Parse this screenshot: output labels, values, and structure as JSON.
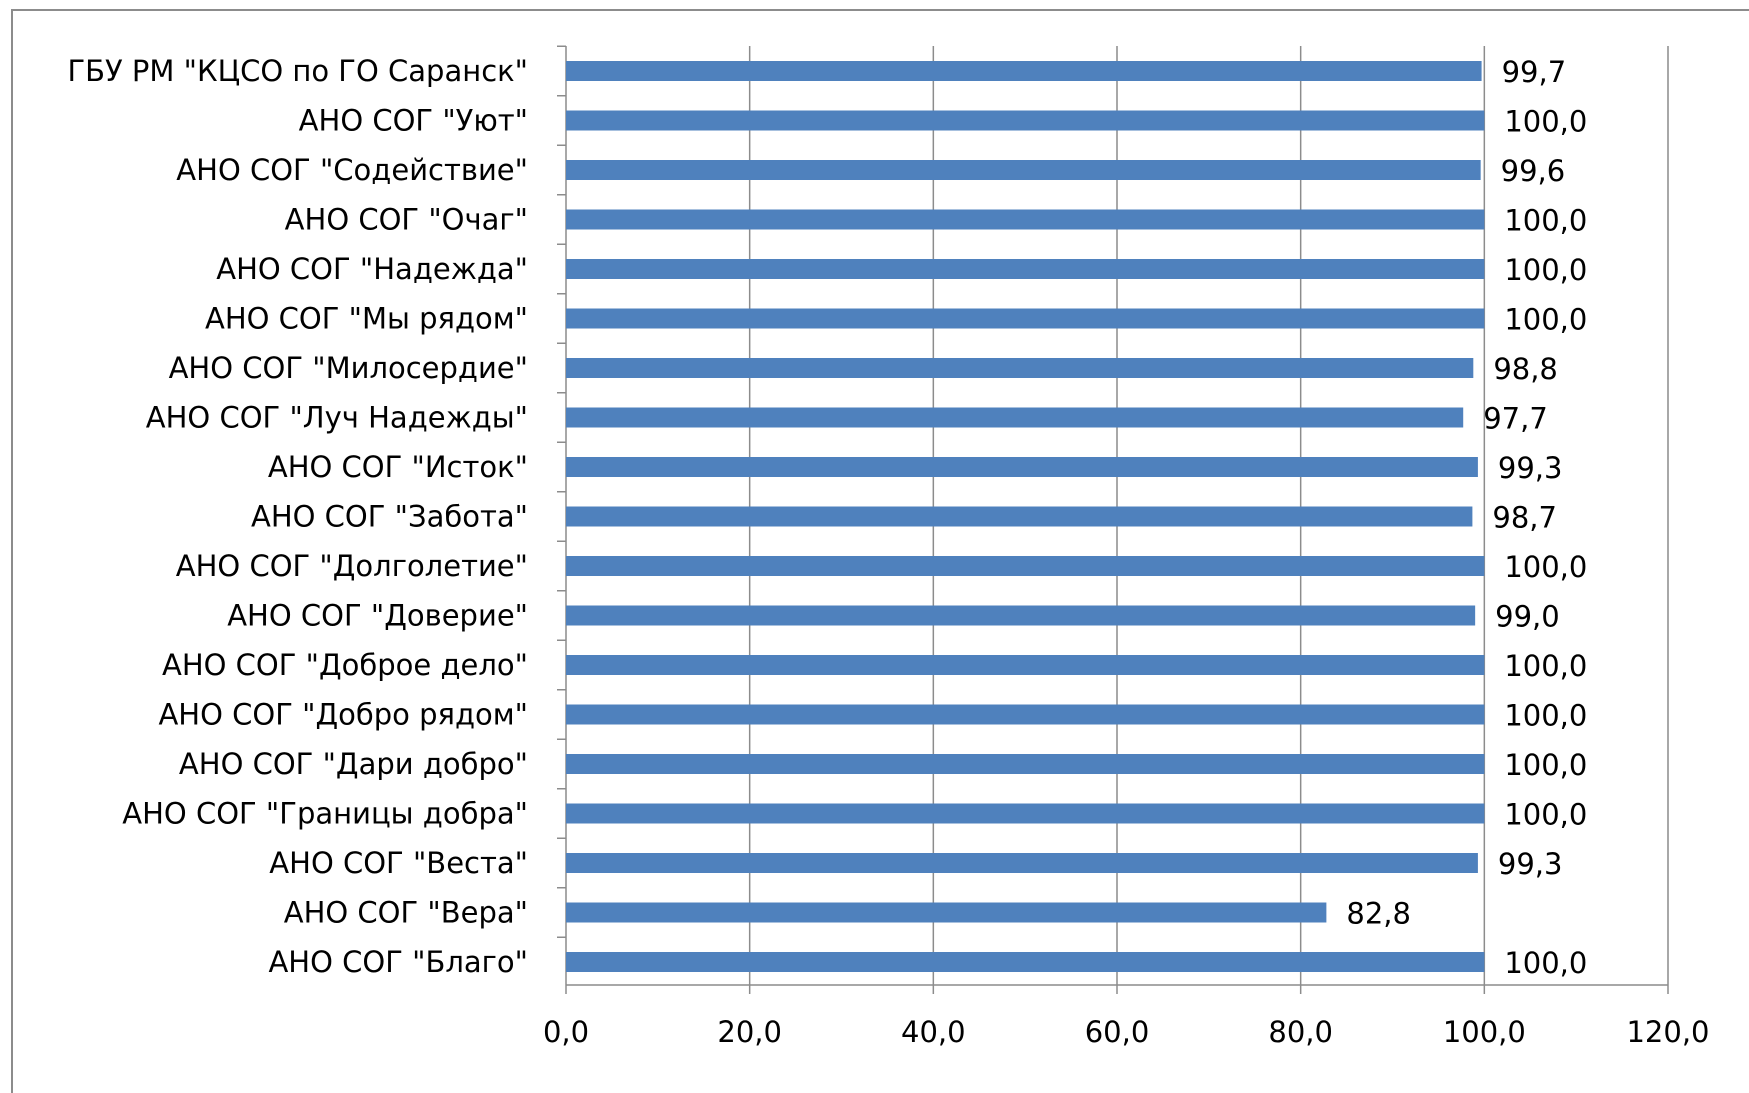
{
  "chart_data": {
    "type": "bar",
    "orientation": "horizontal",
    "title": "",
    "xlabel": "",
    "ylabel": "",
    "xlim": [
      0,
      120
    ],
    "x_ticks": [
      "0,0",
      "20,0",
      "40,0",
      "60,0",
      "80,0",
      "100,0",
      "120,0"
    ],
    "grid": "vertical",
    "legend": "none",
    "bar_color": "#4f81bd",
    "categories": [
      "ГБУ РМ \"КЦСО по ГО Саранск\"",
      "АНО СОГ \"Уют\"",
      "АНО СОГ \"Содействие\"",
      "АНО СОГ \"Очаг\"",
      "АНО СОГ \"Надежда\"",
      "АНО СОГ \"Мы рядом\"",
      "АНО СОГ \"Милосердие\"",
      "АНО СОГ \"Луч Надежды\"",
      "АНО СОГ \"Исток\"",
      "АНО СОГ \"Забота\"",
      "АНО СОГ \"Долголетие\"",
      "АНО СОГ \"Доверие\"",
      "АНО СОГ \"Доброе дело\"",
      "АНО СОГ \"Добро рядом\"",
      "АНО СОГ \"Дари добро\"",
      "АНО СОГ \"Границы добра\"",
      "АНО СОГ \"Веста\"",
      "АНО СОГ \"Вера\"",
      "АНО СОГ \"Благо\""
    ],
    "values": [
      99.7,
      100.0,
      99.6,
      100.0,
      100.0,
      100.0,
      98.8,
      97.7,
      99.3,
      98.7,
      100.0,
      99.0,
      100.0,
      100.0,
      100.0,
      100.0,
      99.3,
      82.8,
      100.0
    ],
    "value_labels": [
      "99,7",
      "100,0",
      "99,6",
      "100,0",
      "100,0",
      "100,0",
      "98,8",
      "97,7",
      "99,3",
      "98,7",
      "100,0",
      "99,0",
      "100,0",
      "100,0",
      "100,0",
      "100,0",
      "99,3",
      "82,8",
      "100,0"
    ]
  }
}
